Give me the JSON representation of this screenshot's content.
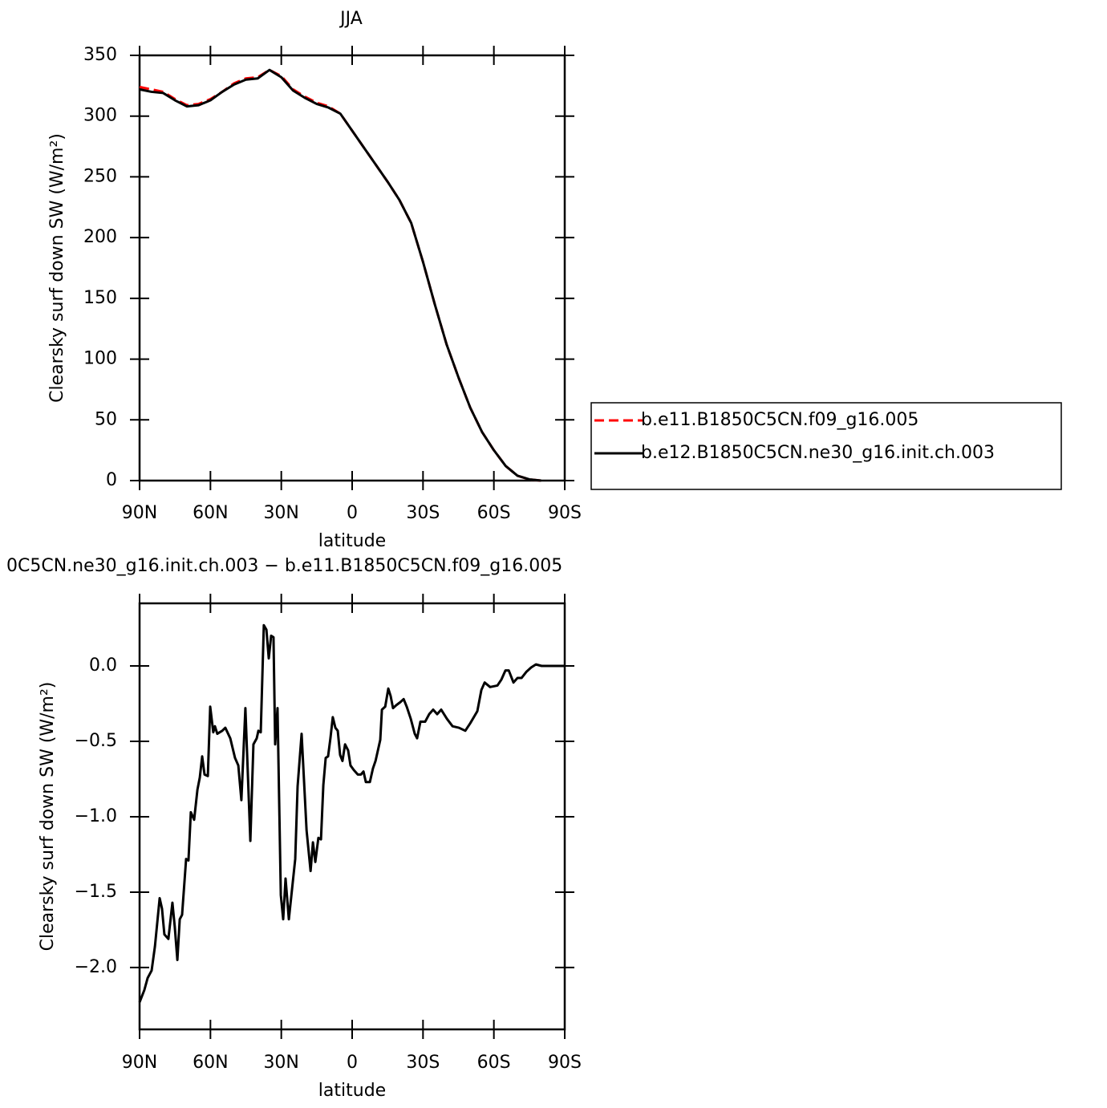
{
  "chart_data": [
    {
      "type": "line",
      "title": "JJA",
      "x_label": "latitude",
      "y_label": "Clearsky surf down SW (W/m²)",
      "x": [
        90,
        85,
        80,
        75,
        70,
        65,
        60,
        55,
        50,
        45,
        40,
        35,
        30,
        25,
        20,
        15,
        10,
        5,
        0,
        -5,
        -10,
        -15,
        -20,
        -25,
        -30,
        -35,
        -40,
        -45,
        -50,
        -55,
        -60,
        -65,
        -70,
        -75,
        -80,
        -85,
        -90
      ],
      "xlim": [
        90,
        -90
      ],
      "xticks": [
        {
          "value": 90,
          "label": "90N"
        },
        {
          "value": 60,
          "label": "60N"
        },
        {
          "value": 30,
          "label": "30N"
        },
        0,
        {
          "value": -30,
          "label": "30S"
        },
        {
          "value": -60,
          "label": "60S"
        },
        {
          "value": -90,
          "label": "90S"
        }
      ],
      "ylim": [
        0,
        350
      ],
      "yticks": [
        0,
        50,
        100,
        150,
        200,
        250,
        300,
        350
      ],
      "legend": "right",
      "series": [
        {
          "name": "b.e11.B1850C5CN.f09_g16.005",
          "color": "#ff0000",
          "dash": "dashed",
          "values": [
            324,
            322,
            320,
            314,
            309,
            310,
            314,
            320,
            327,
            331,
            332,
            338,
            333,
            322,
            316,
            311,
            308,
            302,
            288,
            274,
            260,
            246,
            231,
            212,
            180,
            145,
            112,
            85,
            60,
            40,
            25,
            12,
            4,
            1,
            0,
            null,
            null
          ]
        },
        {
          "name": "b.e12.B1850C5CN.ne30_g16.init.ch.003",
          "color": "#000000",
          "dash": "solid",
          "values": [
            322,
            320,
            319,
            313,
            308,
            309,
            313,
            320,
            326,
            330,
            331,
            338,
            332,
            321,
            315,
            310,
            307,
            302,
            288,
            274,
            260,
            246,
            231,
            212,
            180,
            145,
            112,
            85,
            60,
            40,
            25,
            12,
            4,
            1,
            0,
            null,
            null
          ]
        }
      ]
    },
    {
      "type": "line",
      "title": "0C5CN.ne30_g16.init.ch.003 − b.e11.B1850C5CN.f09_g16.005",
      "x_label": "latitude",
      "y_label": "Clearsky surf down SW (W/m²)",
      "x": [
        90,
        88,
        86.6,
        84.9,
        83.5,
        81.5,
        80.5,
        79.5,
        77.8,
        76.1,
        75.1,
        74,
        73,
        72,
        70.3,
        69.3,
        68.3,
        66.9,
        65.5,
        64.5,
        63.5,
        62.5,
        61.1,
        60.1,
        58.8,
        58.1,
        57.1,
        55,
        53.7,
        51.6,
        49.6,
        48.2,
        46.9,
        45.2,
        43.1,
        41.8,
        40.4,
        39.7,
        38.7,
        37.4,
        36.3,
        35.3,
        34.3,
        33.3,
        32.6,
        31.6,
        30.2,
        29.2,
        28.2,
        26.8,
        24.1,
        23.1,
        21.4,
        19.3,
        17.6,
        16.6,
        15.6,
        14.3,
        13.2,
        12.2,
        11.2,
        10.2,
        9.2,
        8.2,
        7.1,
        6.1,
        5.1,
        4.1,
        3,
        1.7,
        0.7,
        -0.7,
        -2.4,
        -3.7,
        -4.8,
        -5.8,
        -7.5,
        -8.8,
        -9.9,
        -10.9,
        -11.9,
        -12.6,
        -14,
        -15.3,
        -16.3,
        -17.3,
        -18.7,
        -20.4,
        -21.8,
        -23.1,
        -24.8,
        -26.5,
        -27.5,
        -28.9,
        -30.9,
        -32.6,
        -34.3,
        -36,
        -37.7,
        -40.1,
        -42.5,
        -45.2,
        -47.9,
        -50,
        -53,
        -54.7,
        -56.1,
        -58.4,
        -61.5,
        -63.2,
        -64.9,
        -66.3,
        -68.3,
        -70,
        -71.7,
        -73.7,
        -75.8,
        -77.8,
        -80.2,
        -85.2,
        -90
      ],
      "values": [
        -2.23,
        -2.15,
        -2.07,
        -2.02,
        -1.86,
        -1.54,
        -1.61,
        -1.78,
        -1.81,
        -1.57,
        -1.73,
        -1.95,
        -1.68,
        -1.65,
        -1.28,
        -1.29,
        -0.97,
        -1.02,
        -0.82,
        -0.74,
        -0.6,
        -0.72,
        -0.73,
        -0.27,
        -0.44,
        -0.4,
        -0.45,
        -0.43,
        -0.41,
        -0.48,
        -0.61,
        -0.66,
        -0.89,
        -0.28,
        -1.16,
        -0.52,
        -0.48,
        -0.43,
        -0.44,
        0.27,
        0.24,
        0.05,
        0.2,
        0.19,
        -0.52,
        -0.28,
        -1.52,
        -1.68,
        -1.41,
        -1.68,
        -1.28,
        -0.8,
        -0.45,
        -1.09,
        -1.36,
        -1.17,
        -1.3,
        -1.14,
        -1.15,
        -0.79,
        -0.61,
        -0.6,
        -0.48,
        -0.34,
        -0.41,
        -0.43,
        -0.59,
        -0.63,
        -0.52,
        -0.56,
        -0.66,
        -0.69,
        -0.72,
        -0.72,
        -0.7,
        -0.77,
        -0.77,
        -0.68,
        -0.63,
        -0.56,
        -0.49,
        -0.29,
        -0.27,
        -0.15,
        -0.2,
        -0.28,
        -0.26,
        -0.24,
        -0.22,
        -0.27,
        -0.35,
        -0.45,
        -0.48,
        -0.37,
        -0.37,
        -0.32,
        -0.29,
        -0.32,
        -0.29,
        -0.35,
        -0.4,
        -0.41,
        -0.43,
        -0.38,
        -0.3,
        -0.16,
        -0.11,
        -0.14,
        -0.13,
        -0.09,
        -0.03,
        -0.03,
        -0.11,
        -0.08,
        -0.08,
        -0.04,
        -0.01,
        0.01,
        0,
        0,
        0
      ],
      "color": "#000000",
      "xlim": [
        90,
        -90
      ],
      "xticks": [
        {
          "value": 90,
          "label": "90N"
        },
        {
          "value": 60,
          "label": "60N"
        },
        {
          "value": 30,
          "label": "30N"
        },
        0,
        {
          "value": -30,
          "label": "30S"
        },
        {
          "value": -60,
          "label": "60S"
        },
        {
          "value": -90,
          "label": "90S"
        }
      ],
      "ylim": [
        -2.41,
        0.415
      ],
      "yticks": [
        {
          "value": -2,
          "label": "−2.0"
        },
        {
          "value": -1.5,
          "label": "−1.5"
        },
        {
          "value": -1,
          "label": "−1.0"
        },
        {
          "value": -0.5,
          "label": "−0.5"
        },
        {
          "value": 0,
          "label": "0.0"
        }
      ]
    }
  ]
}
